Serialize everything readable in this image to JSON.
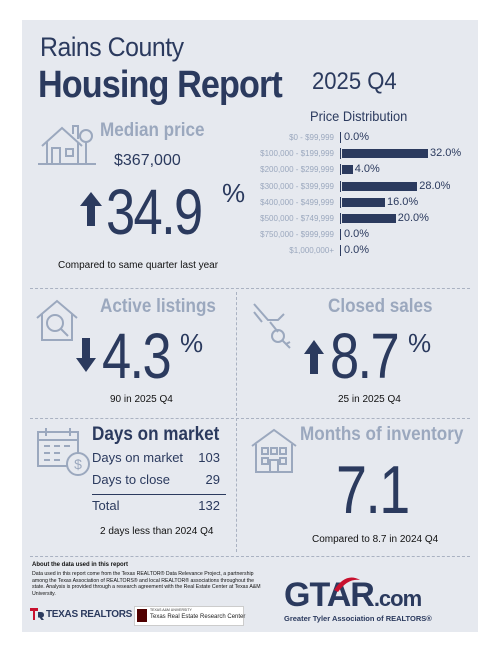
{
  "report": {
    "title_line1": "Rains County",
    "title_line2": "Housing Report",
    "quarter": "2025 Q4"
  },
  "price_distribution": {
    "title": "Price Distribution"
  },
  "chart_data": {
    "type": "bar",
    "orientation": "horizontal",
    "title": "Price Distribution",
    "categories": [
      "$0 - $99,999",
      "$100,000 - $199,999",
      "$200,000 - $299,999",
      "$300,000 - $399,999",
      "$400,000 - $499,999",
      "$500,000 - $749,999",
      "$750,000 - $999,999",
      "$1,000,000+"
    ],
    "values": [
      0.0,
      32.0,
      4.0,
      28.0,
      16.0,
      20.0,
      0.0,
      0.0
    ],
    "value_labels": [
      "0.0%",
      "32.0%",
      "4.0%",
      "28.0%",
      "16.0%",
      "20.0%",
      "0.0%",
      "0.0%"
    ],
    "xlim": [
      0,
      32
    ]
  },
  "median_price": {
    "title": "Median price",
    "value": "$367,000",
    "change": "34.9",
    "pct_sign": "%",
    "direction": "up",
    "note": "Compared to same quarter last year"
  },
  "active_listings": {
    "title": "Active listings",
    "change": "4.3",
    "pct_sign": "%",
    "direction": "down",
    "note": "90 in 2025 Q4"
  },
  "closed_sales": {
    "title": "Closed sales",
    "change": "8.7",
    "pct_sign": "%",
    "direction": "up",
    "note": "25 in 2025 Q4"
  },
  "days_on_market": {
    "title": "Days on market",
    "rows": [
      {
        "label": "Days on market",
        "value": "103"
      },
      {
        "label": "Days to close",
        "value": "29"
      }
    ],
    "total_label": "Total",
    "total_value": "132",
    "note": "2 days less than 2024 Q4"
  },
  "months_inventory": {
    "title": "Months of inventory",
    "value": "7.1",
    "note": "Compared to 8.7 in 2024 Q4"
  },
  "about": {
    "title": "About the data used in this report",
    "body": "Data used in this report come from the Texas REALTOR® Data Relevance Project, a partnership among the Texas Association of REALTORS® and local REALTOR® associations throughout the state. Analysis is provided through a research agreement with the Real Estate Center at Texas A&M University."
  },
  "logos": {
    "texas_realtors": "TEXAS REALTORS",
    "tamu_small": "TEXAS A&M UNIVERSITY",
    "research_center": "Texas Real Estate Research Center",
    "gtar_main": "GTAR",
    "gtar_suffix": ".com",
    "gtar_sub": "Greater Tyler Association of REALTORS®"
  },
  "colors": {
    "navy": "#2b3a5e",
    "muted": "#9ba8be",
    "red": "#c8102e",
    "background": "#e6e9ef"
  }
}
